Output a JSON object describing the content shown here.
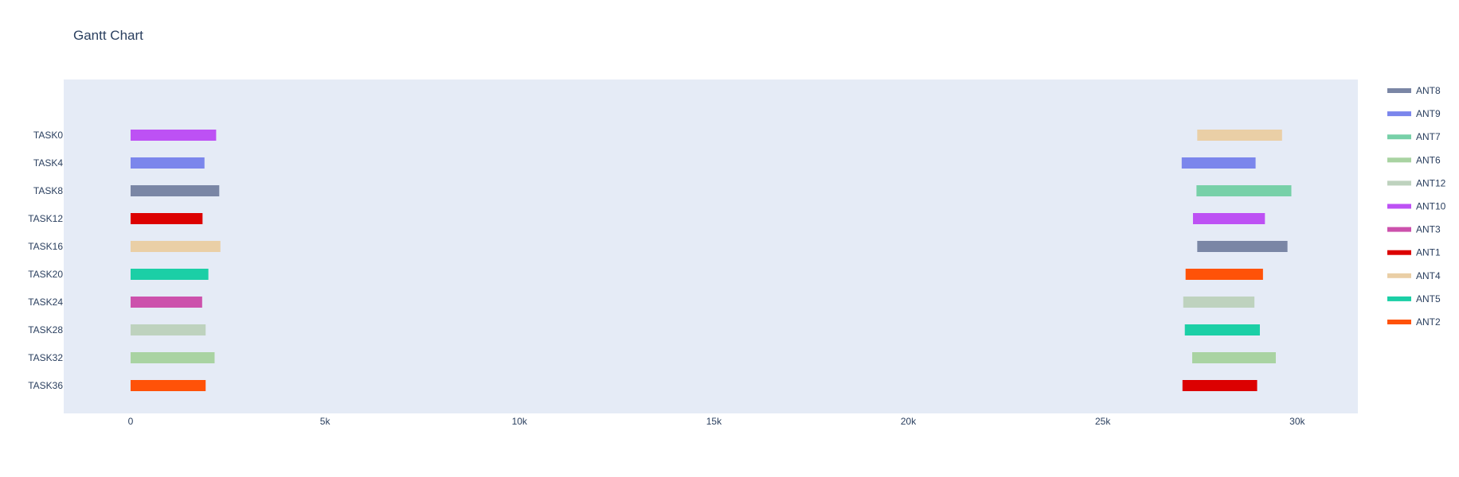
{
  "chart_data": {
    "type": "gantt",
    "title": "Gantt Chart",
    "xlabel": "",
    "ylabel": "",
    "xlim": [
      -1720,
      31560
    ],
    "x_ticks": [
      0,
      5000,
      10000,
      15000,
      20000,
      25000,
      30000
    ],
    "x_tick_labels": [
      "0",
      "5k",
      "10k",
      "15k",
      "20k",
      "25k",
      "30k"
    ],
    "categories": [
      "TASK0",
      "TASK4",
      "TASK8",
      "TASK12",
      "TASK16",
      "TASK20",
      "TASK24",
      "TASK28",
      "TASK32",
      "TASK36"
    ],
    "grid": false,
    "legend_position": "right",
    "series": [
      {
        "name": "ANT8",
        "color": "#7a86a5",
        "bars": [
          {
            "task": "TASK8",
            "start": 0,
            "end": 2280
          },
          {
            "task": "TASK16",
            "start": 27430,
            "end": 29750
          }
        ]
      },
      {
        "name": "ANT9",
        "color": "#7b86ec",
        "bars": [
          {
            "task": "TASK4",
            "start": 0,
            "end": 1900
          },
          {
            "task": "TASK4",
            "start": 27030,
            "end": 28930
          }
        ]
      },
      {
        "name": "ANT7",
        "color": "#77d0a8",
        "bars": [
          {
            "task": "TASK8",
            "start": 27410,
            "end": 29850
          }
        ]
      },
      {
        "name": "ANT6",
        "color": "#a9d3a2",
        "bars": [
          {
            "task": "TASK32",
            "start": 0,
            "end": 2160
          },
          {
            "task": "TASK32",
            "start": 27300,
            "end": 29450
          }
        ]
      },
      {
        "name": "ANT12",
        "color": "#bed2be",
        "bars": [
          {
            "task": "TASK28",
            "start": 0,
            "end": 1930
          },
          {
            "task": "TASK24",
            "start": 27070,
            "end": 28900
          }
        ]
      },
      {
        "name": "ANT10",
        "color": "#bd51f4",
        "bars": [
          {
            "task": "TASK0",
            "start": 0,
            "end": 2200
          },
          {
            "task": "TASK12",
            "start": 27320,
            "end": 29170
          }
        ]
      },
      {
        "name": "ANT3",
        "color": "#cc51ac",
        "bars": [
          {
            "task": "TASK24",
            "start": 0,
            "end": 1840
          }
        ]
      },
      {
        "name": "ANT1",
        "color": "#dc0101",
        "bars": [
          {
            "task": "TASK12",
            "start": 0,
            "end": 1850
          },
          {
            "task": "TASK36",
            "start": 27050,
            "end": 28970
          }
        ]
      },
      {
        "name": "ANT4",
        "color": "#eacfa6",
        "bars": [
          {
            "task": "TASK16",
            "start": 0,
            "end": 2310
          },
          {
            "task": "TASK0",
            "start": 27430,
            "end": 29610
          }
        ]
      },
      {
        "name": "ANT5",
        "color": "#1bcfa6",
        "bars": [
          {
            "task": "TASK20",
            "start": 0,
            "end": 2000
          },
          {
            "task": "TASK28",
            "start": 27110,
            "end": 29040
          }
        ]
      },
      {
        "name": "ANT2",
        "color": "#ff5208",
        "bars": [
          {
            "task": "TASK36",
            "start": 0,
            "end": 1930
          },
          {
            "task": "TASK20",
            "start": 27130,
            "end": 29120
          }
        ]
      }
    ]
  },
  "colors": {
    "plot_background": "#e5ebf6",
    "text": "#2a3f5f"
  }
}
